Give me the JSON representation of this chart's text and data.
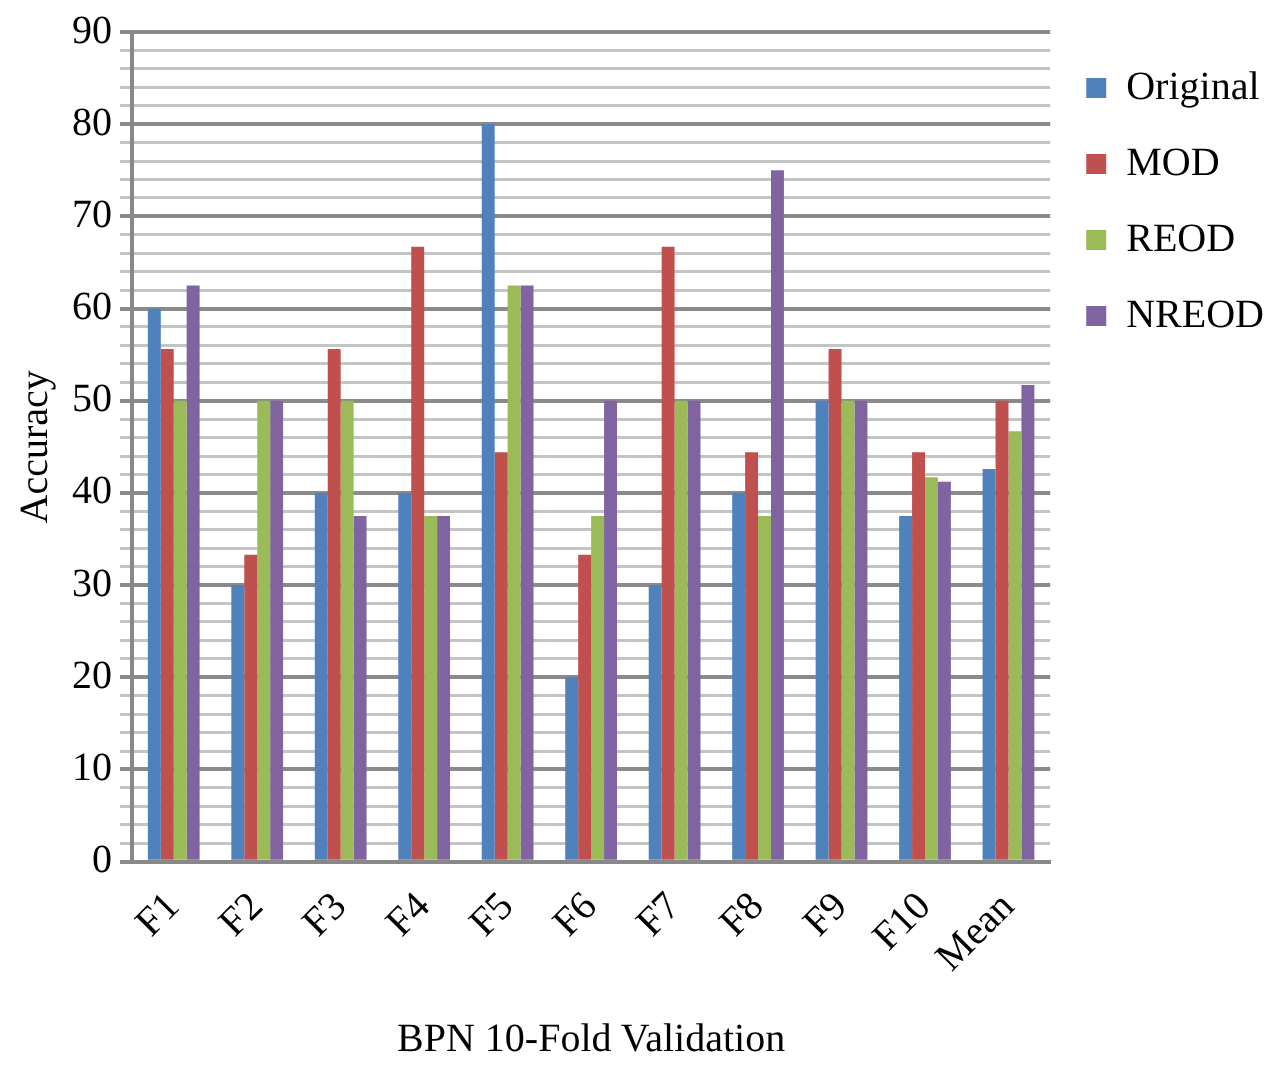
{
  "chart_data": {
    "type": "bar",
    "xlabel": "BPN 10-Fold Validation",
    "ylabel": "Accuracy",
    "categories": [
      "F1",
      "F2",
      "F3",
      "F4",
      "F5",
      "F6",
      "F7",
      "F8",
      "F9",
      "F10",
      "Mean"
    ],
    "series": [
      {
        "name": "Original",
        "color": "#4f81bd",
        "values": [
          60,
          30,
          40,
          40,
          80,
          20,
          30,
          40,
          50,
          37.5,
          42.6
        ]
      },
      {
        "name": "MOD",
        "color": "#c0504d",
        "values": [
          55.6,
          33.3,
          55.6,
          66.7,
          44.4,
          33.3,
          66.7,
          44.4,
          55.6,
          44.4,
          50
        ]
      },
      {
        "name": "REOD",
        "color": "#9bbb59",
        "values": [
          50,
          50,
          50,
          37.5,
          62.5,
          37.5,
          50,
          37.5,
          50,
          41.7,
          46.7
        ]
      },
      {
        "name": "NREOD",
        "color": "#8064a2",
        "values": [
          62.5,
          50,
          37.5,
          37.5,
          62.5,
          50,
          50,
          75,
          50,
          41.2,
          51.7
        ]
      }
    ],
    "ylim": [
      0,
      90
    ],
    "yticks": [
      0,
      {
        "value": 2,
        "label": null
      },
      {
        "value": 4,
        "label": null
      },
      {
        "value": 6,
        "label": null
      },
      {
        "value": 8,
        "label": null
      },
      10,
      {
        "value": 12,
        "label": null
      },
      {
        "value": 14,
        "label": null
      },
      {
        "value": 16,
        "label": null
      },
      {
        "value": 18,
        "label": null
      },
      20,
      {
        "value": 22,
        "label": null
      },
      {
        "value": 24,
        "label": null
      },
      {
        "value": 26,
        "label": null
      },
      {
        "value": 28,
        "label": null
      },
      30,
      {
        "value": 32,
        "label": null
      },
      {
        "value": 34,
        "label": null
      },
      {
        "value": 36,
        "label": null
      },
      {
        "value": 38,
        "label": null
      },
      40,
      {
        "value": 42,
        "label": null
      },
      {
        "value": 44,
        "label": null
      },
      {
        "value": 46,
        "label": null
      },
      {
        "value": 48,
        "label": null
      },
      50,
      {
        "value": 52,
        "label": null
      },
      {
        "value": 54,
        "label": null
      },
      {
        "value": 56,
        "label": null
      },
      {
        "value": 58,
        "label": null
      },
      60,
      {
        "value": 62,
        "label": null
      },
      {
        "value": 64,
        "label": null
      },
      {
        "value": 66,
        "label": null
      },
      {
        "value": 68,
        "label": null
      },
      70,
      {
        "value": 72,
        "label": null
      },
      {
        "value": 74,
        "label": null
      },
      {
        "value": 76,
        "label": null
      },
      {
        "value": 78,
        "label": null
      },
      80,
      {
        "value": 82,
        "label": null
      },
      {
        "value": 84,
        "label": null
      },
      {
        "value": 86,
        "label": null
      },
      {
        "value": 88,
        "label": null
      },
      90
    ],
    "grid": "y",
    "legend": "top right"
  }
}
